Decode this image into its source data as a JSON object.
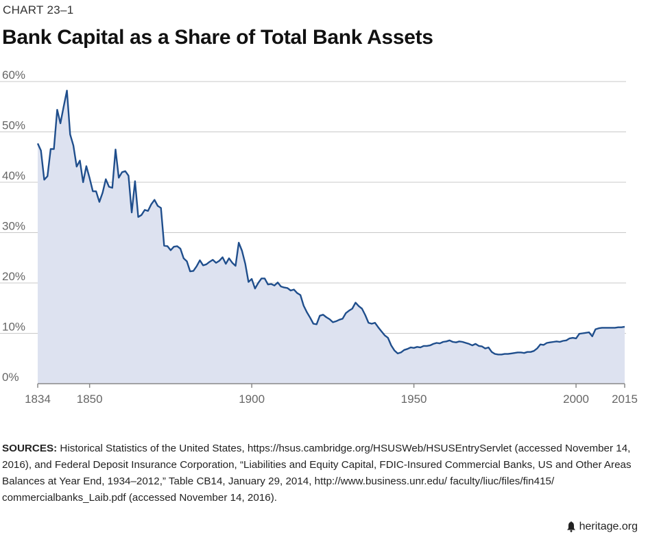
{
  "kicker": "CHART 23–1",
  "title": "Bank Capital as a Share of Total Bank Assets",
  "sources_label": "SOURCES:",
  "sources_text": " Historical Statistics of the United States, https://hsus.cambridge.org/HSUSWeb/HSUSEntryServlet (accessed November 14, 2016), and Federal Deposit Insurance Corporation, “Liabilities and Equity Capital, FDIC-Insured Commercial Banks, US and Other Areas Balances at Year End, 1934–2012,” Table CB14, January 29, 2014, http://www.business.unr.edu/ faculty/liuc/files/fin415/ commercialbanks_Laib.pdf (accessed November 14, 2016).",
  "footer_site": "heritage.org",
  "footer_icon": "liberty-bell-icon",
  "colors": {
    "line": "#1f4e8c",
    "fill": "#dde2f0",
    "grid": "#c8c8c8",
    "axis": "#888888"
  },
  "chart_data": {
    "type": "area",
    "title": "Bank Capital as a Share of Total Bank Assets",
    "xlabel": "",
    "ylabel": "",
    "xlim": [
      1834,
      2015
    ],
    "ylim": [
      0,
      60
    ],
    "x_ticks": [
      1834,
      1850,
      1900,
      1950,
      2000,
      2015
    ],
    "y_ticks": [
      {
        "value": 0,
        "label": "0%"
      },
      {
        "value": 10,
        "label": "10%"
      },
      {
        "value": 20,
        "label": "20%"
      },
      {
        "value": 30,
        "label": "30%"
      },
      {
        "value": 40,
        "label": "40%"
      },
      {
        "value": 50,
        "label": "50%"
      },
      {
        "value": 60,
        "label": "60%"
      }
    ],
    "grid": "horizontal",
    "legend": "none",
    "series": [
      {
        "name": "",
        "points": [
          [
            1834,
            47.7
          ],
          [
            1835,
            46.3
          ],
          [
            1836,
            40.5
          ],
          [
            1837,
            41.2
          ],
          [
            1838,
            46.6
          ],
          [
            1839,
            46.6
          ],
          [
            1840,
            54.4
          ],
          [
            1841,
            51.7
          ],
          [
            1842,
            55.0
          ],
          [
            1843,
            58.2
          ],
          [
            1844,
            49.5
          ],
          [
            1845,
            47.3
          ],
          [
            1846,
            43.1
          ],
          [
            1847,
            44.3
          ],
          [
            1848,
            40.0
          ],
          [
            1849,
            43.2
          ],
          [
            1850,
            40.8
          ],
          [
            1851,
            38.2
          ],
          [
            1852,
            38.2
          ],
          [
            1853,
            36.1
          ],
          [
            1854,
            37.9
          ],
          [
            1855,
            40.6
          ],
          [
            1856,
            39.1
          ],
          [
            1857,
            38.9
          ],
          [
            1858,
            46.5
          ],
          [
            1859,
            40.9
          ],
          [
            1860,
            42.0
          ],
          [
            1861,
            42.2
          ],
          [
            1862,
            41.3
          ],
          [
            1863,
            34.0
          ],
          [
            1864,
            40.2
          ],
          [
            1865,
            33.1
          ],
          [
            1866,
            33.5
          ],
          [
            1867,
            34.5
          ],
          [
            1868,
            34.3
          ],
          [
            1869,
            35.6
          ],
          [
            1870,
            36.5
          ],
          [
            1871,
            35.3
          ],
          [
            1872,
            34.9
          ],
          [
            1873,
            27.4
          ],
          [
            1874,
            27.3
          ],
          [
            1875,
            26.5
          ],
          [
            1876,
            27.2
          ],
          [
            1877,
            27.3
          ],
          [
            1878,
            26.8
          ],
          [
            1879,
            24.9
          ],
          [
            1880,
            24.3
          ],
          [
            1881,
            22.3
          ],
          [
            1882,
            22.4
          ],
          [
            1883,
            23.3
          ],
          [
            1884,
            24.5
          ],
          [
            1885,
            23.5
          ],
          [
            1886,
            23.7
          ],
          [
            1887,
            24.2
          ],
          [
            1888,
            24.6
          ],
          [
            1889,
            24.0
          ],
          [
            1890,
            24.4
          ],
          [
            1891,
            25.1
          ],
          [
            1892,
            23.8
          ],
          [
            1893,
            24.9
          ],
          [
            1894,
            24.0
          ],
          [
            1895,
            23.4
          ],
          [
            1896,
            28.0
          ],
          [
            1897,
            26.4
          ],
          [
            1898,
            23.8
          ],
          [
            1899,
            20.2
          ],
          [
            1900,
            20.8
          ],
          [
            1901,
            18.9
          ],
          [
            1902,
            20.0
          ],
          [
            1903,
            20.9
          ],
          [
            1904,
            20.9
          ],
          [
            1905,
            19.7
          ],
          [
            1906,
            19.8
          ],
          [
            1907,
            19.5
          ],
          [
            1908,
            20.1
          ],
          [
            1909,
            19.3
          ],
          [
            1910,
            19.1
          ],
          [
            1911,
            19.0
          ],
          [
            1912,
            18.5
          ],
          [
            1913,
            18.7
          ],
          [
            1914,
            18.0
          ],
          [
            1915,
            17.6
          ],
          [
            1916,
            15.5
          ],
          [
            1917,
            14.2
          ],
          [
            1918,
            13.1
          ],
          [
            1919,
            11.9
          ],
          [
            1920,
            11.8
          ],
          [
            1921,
            13.5
          ],
          [
            1922,
            13.7
          ],
          [
            1923,
            13.2
          ],
          [
            1924,
            12.8
          ],
          [
            1925,
            12.2
          ],
          [
            1926,
            12.4
          ],
          [
            1927,
            12.7
          ],
          [
            1928,
            12.9
          ],
          [
            1929,
            14.0
          ],
          [
            1930,
            14.5
          ],
          [
            1931,
            14.9
          ],
          [
            1932,
            16.1
          ],
          [
            1933,
            15.4
          ],
          [
            1934,
            14.9
          ],
          [
            1935,
            13.6
          ],
          [
            1936,
            12.1
          ],
          [
            1937,
            11.9
          ],
          [
            1938,
            12.1
          ],
          [
            1939,
            11.2
          ],
          [
            1940,
            10.4
          ],
          [
            1941,
            9.6
          ],
          [
            1942,
            9.1
          ],
          [
            1943,
            7.6
          ],
          [
            1944,
            6.6
          ],
          [
            1945,
            6.0
          ],
          [
            1946,
            6.2
          ],
          [
            1947,
            6.7
          ],
          [
            1948,
            6.9
          ],
          [
            1949,
            7.2
          ],
          [
            1950,
            7.1
          ],
          [
            1951,
            7.3
          ],
          [
            1952,
            7.2
          ],
          [
            1953,
            7.5
          ],
          [
            1954,
            7.5
          ],
          [
            1955,
            7.6
          ],
          [
            1956,
            7.9
          ],
          [
            1957,
            8.1
          ],
          [
            1958,
            8.0
          ],
          [
            1959,
            8.3
          ],
          [
            1960,
            8.4
          ],
          [
            1961,
            8.6
          ],
          [
            1962,
            8.3
          ],
          [
            1963,
            8.2
          ],
          [
            1964,
            8.4
          ],
          [
            1965,
            8.3
          ],
          [
            1966,
            8.1
          ],
          [
            1967,
            7.9
          ],
          [
            1968,
            7.6
          ],
          [
            1969,
            7.9
          ],
          [
            1970,
            7.5
          ],
          [
            1971,
            7.4
          ],
          [
            1972,
            7.0
          ],
          [
            1973,
            7.2
          ],
          [
            1974,
            6.3
          ],
          [
            1975,
            5.9
          ],
          [
            1976,
            5.8
          ],
          [
            1977,
            5.8
          ],
          [
            1978,
            5.9
          ],
          [
            1979,
            5.9
          ],
          [
            1980,
            6.0
          ],
          [
            1981,
            6.1
          ],
          [
            1982,
            6.2
          ],
          [
            1983,
            6.2
          ],
          [
            1984,
            6.1
          ],
          [
            1985,
            6.3
          ],
          [
            1986,
            6.3
          ],
          [
            1987,
            6.5
          ],
          [
            1988,
            7.0
          ],
          [
            1989,
            7.8
          ],
          [
            1990,
            7.7
          ],
          [
            1991,
            8.1
          ],
          [
            1992,
            8.2
          ],
          [
            1993,
            8.3
          ],
          [
            1994,
            8.4
          ],
          [
            1995,
            8.3
          ],
          [
            1996,
            8.5
          ],
          [
            1997,
            8.6
          ],
          [
            1998,
            9.0
          ],
          [
            1999,
            9.1
          ],
          [
            2000,
            9.0
          ],
          [
            2001,
            9.9
          ],
          [
            2002,
            10.0
          ],
          [
            2003,
            10.1
          ],
          [
            2004,
            10.2
          ],
          [
            2005,
            9.4
          ],
          [
            2006,
            10.8
          ],
          [
            2007,
            11.0
          ],
          [
            2008,
            11.1
          ],
          [
            2009,
            11.1
          ],
          [
            2010,
            11.1
          ],
          [
            2011,
            11.1
          ],
          [
            2012,
            11.1
          ],
          [
            2013,
            11.2
          ],
          [
            2014,
            11.2
          ],
          [
            2015,
            11.3
          ]
        ]
      }
    ]
  }
}
